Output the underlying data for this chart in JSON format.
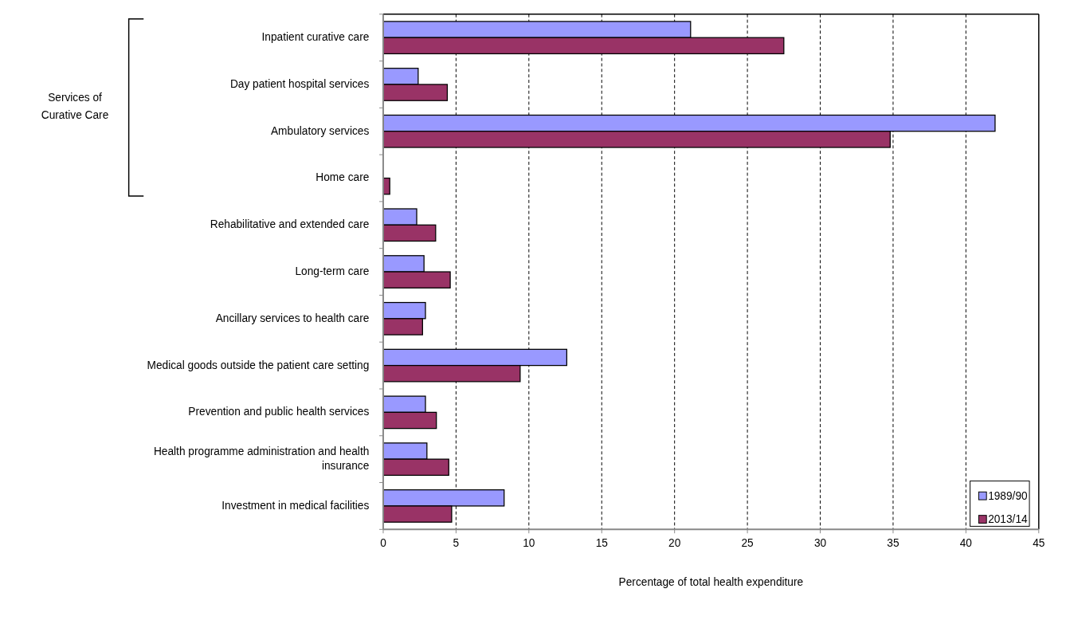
{
  "chart_data": {
    "type": "bar",
    "orientation": "horizontal",
    "xlabel": "Percentage of total health expenditure",
    "categories": [
      "Inpatient curative care",
      "Day patient hospital services",
      "Ambulatory services",
      "Home care",
      "Rehabilitative and extended care",
      "Long-term care",
      "Ancillary services to health care",
      "Medical goods outside the patient care setting",
      "Prevention and public health services",
      "Health programme administration and health insurance",
      "Investment in medical facilities"
    ],
    "series": [
      {
        "name": "1989/90",
        "color": "#9999ff",
        "values": [
          21.1,
          2.4,
          42.0,
          null,
          2.3,
          2.8,
          2.9,
          12.6,
          2.9,
          3.0,
          8.3
        ]
      },
      {
        "name": "2013/14",
        "color": "#993366",
        "values": [
          27.5,
          4.4,
          34.8,
          0.45,
          3.6,
          4.6,
          2.7,
          9.4,
          3.65,
          4.5,
          4.7
        ]
      }
    ],
    "xlim": [
      0,
      45
    ],
    "xticks": [
      0,
      5,
      10,
      15,
      20,
      25,
      30,
      35,
      40,
      45
    ],
    "grid": "x",
    "legend": "bottom right",
    "annotations": [
      "Services of Curative Care"
    ]
  }
}
